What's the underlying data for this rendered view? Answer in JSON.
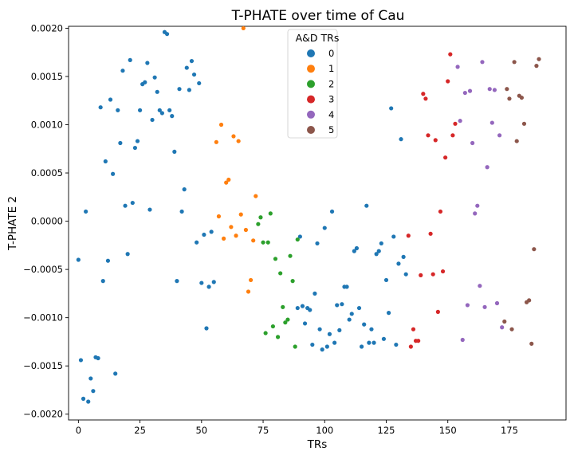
{
  "chart_data": {
    "type": "scatter",
    "title": "T-PHATE over time of Cau",
    "xlabel": "TRs",
    "ylabel": "T-PHATE 2",
    "xlim": [
      -4,
      198
    ],
    "ylim": [
      -0.00206,
      0.00202
    ],
    "xticks": [
      0,
      25,
      50,
      75,
      100,
      125,
      150,
      175
    ],
    "xtick_labels": [
      "0",
      "25",
      "50",
      "75",
      "100",
      "125",
      "150",
      "175"
    ],
    "yticks": [
      -0.002,
      -0.0015,
      -0.001,
      -0.0005,
      0.0,
      0.0005,
      0.001,
      0.0015,
      0.002
    ],
    "ytick_labels": [
      "−0.0020",
      "−0.0015",
      "−0.0010",
      "−0.0005",
      "0.0000",
      "0.0005",
      "0.0010",
      "0.0015",
      "0.0020"
    ],
    "grid": false,
    "legend": {
      "title": "A&D TRs",
      "position": "top-center"
    },
    "series": [
      {
        "name": "0",
        "color": "#1f77b4",
        "points": [
          [
            0,
            -0.0004
          ],
          [
            1,
            -0.00144
          ],
          [
            2,
            -0.00184
          ],
          [
            3,
            0.0001
          ],
          [
            4,
            -0.00187
          ],
          [
            5,
            -0.00163
          ],
          [
            6,
            -0.00176
          ],
          [
            7,
            -0.00141
          ],
          [
            8,
            -0.00142
          ],
          [
            9,
            0.00118
          ],
          [
            10,
            -0.00062
          ],
          [
            11,
            0.00062
          ],
          [
            12,
            -0.00041
          ],
          [
            13,
            0.00126
          ],
          [
            14,
            0.00049
          ],
          [
            15,
            -0.00158
          ],
          [
            16,
            0.00115
          ],
          [
            17,
            0.00081
          ],
          [
            18,
            0.00156
          ],
          [
            19,
            0.00016
          ],
          [
            20,
            -0.00034
          ],
          [
            21,
            0.00167
          ],
          [
            22,
            0.00019
          ],
          [
            23,
            0.00076
          ],
          [
            24,
            0.00083
          ],
          [
            25,
            0.00115
          ],
          [
            26,
            0.00142
          ],
          [
            27,
            0.00144
          ],
          [
            28,
            0.00164
          ],
          [
            29,
            0.00012
          ],
          [
            30,
            0.00105
          ],
          [
            31,
            0.00149
          ],
          [
            32,
            0.00134
          ],
          [
            33,
            0.00115
          ],
          [
            34,
            0.00112
          ],
          [
            35,
            0.00196
          ],
          [
            36,
            0.00194
          ],
          [
            37,
            0.00115
          ],
          [
            38,
            0.00109
          ],
          [
            39,
            0.00072
          ],
          [
            40,
            -0.00062
          ],
          [
            41,
            0.00137
          ],
          [
            42,
            0.0001
          ],
          [
            43,
            0.00033
          ],
          [
            44,
            0.00159
          ],
          [
            45,
            0.00136
          ],
          [
            46,
            0.00166
          ],
          [
            47,
            0.00152
          ],
          [
            48,
            -0.00022
          ],
          [
            49,
            0.00143
          ],
          [
            50,
            -0.00064
          ],
          [
            51,
            -0.00014
          ],
          [
            52,
            -0.00111
          ],
          [
            53,
            -0.00068
          ],
          [
            54,
            -0.00011
          ],
          [
            55,
            -0.00063
          ],
          [
            89,
            -0.0009
          ],
          [
            90,
            -0.00016
          ],
          [
            91,
            -0.00088
          ],
          [
            92,
            -0.00106
          ],
          [
            93,
            -0.0009
          ],
          [
            94,
            -0.00092
          ],
          [
            95,
            -0.00128
          ],
          [
            96,
            -0.00075
          ],
          [
            97,
            -0.00023
          ],
          [
            98,
            -0.00112
          ],
          [
            99,
            -0.00133
          ],
          [
            100,
            -7e-05
          ],
          [
            101,
            -0.0013
          ],
          [
            102,
            -0.00117
          ],
          [
            103,
            0.0001
          ],
          [
            104,
            -0.00126
          ],
          [
            105,
            -0.00087
          ],
          [
            106,
            -0.00113
          ],
          [
            107,
            -0.00086
          ],
          [
            108,
            -0.00068
          ],
          [
            109,
            -0.00068
          ],
          [
            110,
            -0.00102
          ],
          [
            111,
            -0.00096
          ],
          [
            112,
            -0.00031
          ],
          [
            113,
            -0.00028
          ],
          [
            114,
            -0.0009
          ],
          [
            115,
            -0.0013
          ],
          [
            116,
            -0.00107
          ],
          [
            117,
            0.00016
          ],
          [
            118,
            -0.00126
          ],
          [
            119,
            -0.00112
          ],
          [
            120,
            -0.00126
          ],
          [
            121,
            -0.00034
          ],
          [
            122,
            -0.00031
          ],
          [
            123,
            -0.00023
          ],
          [
            124,
            -0.00122
          ],
          [
            125,
            -0.00061
          ],
          [
            126,
            -0.00095
          ],
          [
            127,
            0.00117
          ],
          [
            128,
            -0.00016
          ],
          [
            129,
            -0.00128
          ],
          [
            130,
            -0.00044
          ],
          [
            131,
            0.00085
          ],
          [
            132,
            -0.00037
          ],
          [
            133,
            -0.00055
          ]
        ]
      },
      {
        "name": "1",
        "color": "#ff7f0e",
        "points": [
          [
            56,
            0.00082
          ],
          [
            57,
            5e-05
          ],
          [
            58,
            0.001
          ],
          [
            59,
            -0.00018
          ],
          [
            60,
            0.0004
          ],
          [
            61,
            0.00043
          ],
          [
            62,
            -6e-05
          ],
          [
            63,
            0.00088
          ],
          [
            64,
            -0.00015
          ],
          [
            65,
            0.00083
          ],
          [
            66,
            7e-05
          ],
          [
            67,
            0.002
          ],
          [
            68,
            -9e-05
          ],
          [
            69,
            -0.00073
          ],
          [
            70,
            -0.00061
          ],
          [
            71,
            -0.0002
          ],
          [
            72,
            0.00026
          ]
        ]
      },
      {
        "name": "2",
        "color": "#2ca02c",
        "points": [
          [
            73,
            -3e-05
          ],
          [
            74,
            4e-05
          ],
          [
            75,
            -0.00022
          ],
          [
            76,
            -0.00116
          ],
          [
            77,
            -0.00022
          ],
          [
            78,
            8e-05
          ],
          [
            79,
            -0.00109
          ],
          [
            80,
            -0.00039
          ],
          [
            81,
            -0.0012
          ],
          [
            82,
            -0.00054
          ],
          [
            83,
            -0.00089
          ],
          [
            84,
            -0.00105
          ],
          [
            85,
            -0.00102
          ],
          [
            86,
            -0.00036
          ],
          [
            87,
            -0.00062
          ],
          [
            88,
            -0.0013
          ],
          [
            89,
            -0.00019
          ]
        ]
      },
      {
        "name": "3",
        "color": "#d62728",
        "points": [
          [
            134,
            -0.00015
          ],
          [
            135,
            -0.0013
          ],
          [
            136,
            -0.00112
          ],
          [
            137,
            -0.00124
          ],
          [
            138,
            -0.00124
          ],
          [
            139,
            -0.00056
          ],
          [
            140,
            0.00132
          ],
          [
            141,
            0.00127
          ],
          [
            142,
            0.00089
          ],
          [
            143,
            -0.00013
          ],
          [
            144,
            -0.00055
          ],
          [
            145,
            0.00084
          ],
          [
            146,
            -0.00094
          ],
          [
            147,
            0.0001
          ],
          [
            148,
            -0.00052
          ],
          [
            149,
            0.00066
          ],
          [
            150,
            0.00145
          ],
          [
            151,
            0.00173
          ],
          [
            152,
            0.00089
          ],
          [
            153,
            0.00101
          ]
        ]
      },
      {
        "name": "4",
        "color": "#9467bd",
        "points": [
          [
            154,
            0.0016
          ],
          [
            155,
            0.00104
          ],
          [
            156,
            -0.00123
          ],
          [
            157,
            0.00133
          ],
          [
            158,
            -0.00087
          ],
          [
            159,
            0.00135
          ],
          [
            160,
            0.00081
          ],
          [
            161,
            8e-05
          ],
          [
            162,
            0.00016
          ],
          [
            163,
            -0.00067
          ],
          [
            164,
            0.00165
          ],
          [
            165,
            -0.00089
          ],
          [
            166,
            0.00056
          ],
          [
            167,
            0.00137
          ],
          [
            168,
            0.00102
          ],
          [
            169,
            0.00136
          ],
          [
            170,
            -0.00085
          ],
          [
            171,
            0.00089
          ],
          [
            172,
            -0.0011
          ]
        ]
      },
      {
        "name": "5",
        "color": "#8c564b",
        "points": [
          [
            173,
            -0.00104
          ],
          [
            174,
            0.00137
          ],
          [
            175,
            0.00127
          ],
          [
            176,
            -0.00112
          ],
          [
            177,
            0.00165
          ],
          [
            178,
            0.00083
          ],
          [
            179,
            0.0013
          ],
          [
            180,
            0.00128
          ],
          [
            181,
            0.00101
          ],
          [
            182,
            -0.00084
          ],
          [
            183,
            -0.00082
          ],
          [
            184,
            -0.00127
          ],
          [
            185,
            -0.00029
          ],
          [
            186,
            0.00161
          ],
          [
            187,
            0.00168
          ]
        ]
      }
    ]
  }
}
